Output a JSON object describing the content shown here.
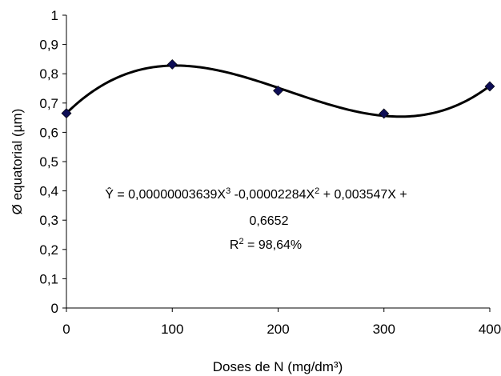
{
  "chart_data": {
    "type": "scatter",
    "title": "",
    "xlabel": "Doses de N (mg/dm³)",
    "ylabel": "Ø equatorial (µm)",
    "xlim": [
      0,
      400
    ],
    "ylim": [
      0,
      1
    ],
    "x_ticks": [
      "0",
      "100",
      "200",
      "300",
      "400"
    ],
    "y_ticks": [
      "0",
      "0,1",
      "0,2",
      "0,3",
      "0,4",
      "0,5",
      "0,6",
      "0,7",
      "0,8",
      "0,9",
      "1"
    ],
    "grid": false,
    "legend": "none",
    "marker_color": "#0d0d55",
    "line_color": "#000000",
    "points": {
      "x": [
        0,
        100,
        200,
        300,
        400
      ],
      "y": [
        0.665,
        0.832,
        0.742,
        0.664,
        0.757
      ]
    },
    "fit": {
      "coefficients": {
        "a3": 3.639e-08,
        "a2": -2.284e-05,
        "a1": 0.003547,
        "a0": 0.6652
      },
      "equation_text": {
        "line1_prefix": "Ŷ = 0,00000003639X",
        "sup1": "3",
        "line1_mid": " -0,00002284X",
        "sup2": "2",
        "line1_suffix": " + 0,003547X +",
        "line2": "0,6652",
        "r2_prefix": "R",
        "r2_sup": "2",
        "r2_suffix": " = 98,64%"
      }
    }
  }
}
